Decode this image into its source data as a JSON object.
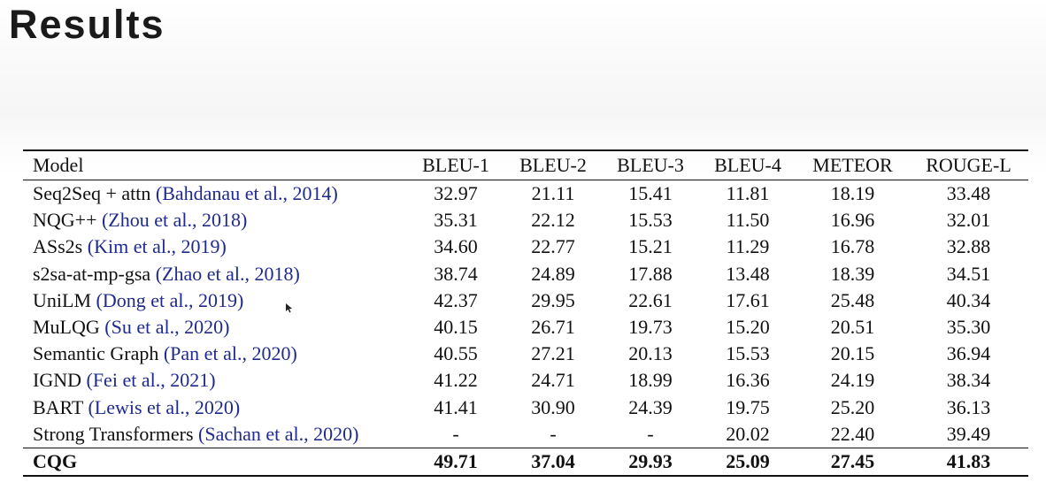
{
  "slide": {
    "title": "Results"
  },
  "table": {
    "columns": [
      "Model",
      "BLEU-1",
      "BLEU-2",
      "BLEU-3",
      "BLEU-4",
      "METEOR",
      "ROUGE-L"
    ],
    "rows": [
      {
        "model": "Seq2Seq + attn",
        "cite": "(Bahdanau et al., 2014)",
        "values": [
          "32.97",
          "21.11",
          "15.41",
          "11.81",
          "18.19",
          "33.48"
        ]
      },
      {
        "model": "NQG++",
        "cite": "(Zhou et al., 2018)",
        "values": [
          "35.31",
          "22.12",
          "15.53",
          "11.50",
          "16.96",
          "32.01"
        ]
      },
      {
        "model": "ASs2s",
        "cite": "(Kim et al., 2019)",
        "values": [
          "34.60",
          "22.77",
          "15.21",
          "11.29",
          "16.78",
          "32.88"
        ]
      },
      {
        "model": "s2sa-at-mp-gsa",
        "cite": "(Zhao et al., 2018)",
        "values": [
          "38.74",
          "24.89",
          "17.88",
          "13.48",
          "18.39",
          "34.51"
        ]
      },
      {
        "model": "UniLM",
        "cite": "(Dong et al., 2019)",
        "values": [
          "42.37",
          "29.95",
          "22.61",
          "17.61",
          "25.48",
          "40.34"
        ]
      },
      {
        "model": "MuLQG",
        "cite": "(Su et al., 2020)",
        "values": [
          "40.15",
          "26.71",
          "19.73",
          "15.20",
          "20.51",
          "35.30"
        ]
      },
      {
        "model": "Semantic Graph",
        "cite": "(Pan et al., 2020)",
        "values": [
          "40.55",
          "27.21",
          "20.13",
          "15.53",
          "20.15",
          "36.94"
        ]
      },
      {
        "model": "IGND",
        "cite": "(Fei et al., 2021)",
        "values": [
          "41.22",
          "24.71",
          "18.99",
          "16.36",
          "24.19",
          "38.34"
        ]
      },
      {
        "model": "BART",
        "cite": "(Lewis et al., 2020)",
        "values": [
          "41.41",
          "30.90",
          "24.39",
          "19.75",
          "25.20",
          "36.13"
        ]
      },
      {
        "model": "Strong Transformers",
        "cite": "(Sachan et al., 2020)",
        "values": [
          "-",
          "-",
          "-",
          "20.02",
          "22.40",
          "39.49"
        ]
      }
    ],
    "final_row": {
      "model": "CQG",
      "values": [
        "49.71",
        "37.04",
        "29.93",
        "25.09",
        "27.45",
        "41.83"
      ]
    }
  }
}
